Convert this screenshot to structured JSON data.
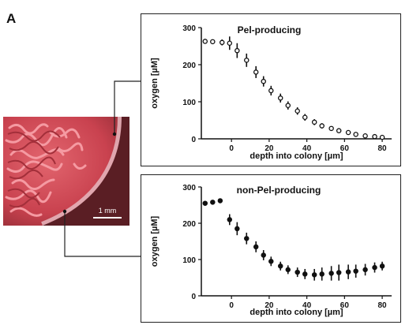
{
  "panel_label": "A",
  "scale_bar_label": "1 mm",
  "chart_data": [
    {
      "type": "scatter",
      "title": "Pel-producing",
      "xlabel": "depth into colony [µm]",
      "ylabel": "oxygen [µM]",
      "xlim": [
        -16,
        85
      ],
      "ylim": [
        0,
        300
      ],
      "xticks": [
        "0",
        "20",
        "40",
        "60",
        "80"
      ],
      "yticks": [
        "0",
        "100",
        "200",
        "300"
      ],
      "marker": "open-circle",
      "x": [
        -14,
        -10,
        -5,
        -1,
        3,
        8,
        13,
        17,
        21,
        26,
        30,
        35,
        39,
        44,
        48,
        53,
        57,
        62,
        66,
        71,
        76,
        80
      ],
      "y": [
        263,
        262,
        260,
        258,
        238,
        212,
        180,
        155,
        130,
        110,
        90,
        75,
        58,
        45,
        35,
        28,
        22,
        17,
        12,
        8,
        6,
        4
      ],
      "err": [
        0,
        0,
        8,
        18,
        20,
        18,
        16,
        14,
        13,
        12,
        11,
        10,
        9,
        8,
        7,
        6,
        5,
        4,
        4,
        3,
        3,
        2
      ]
    },
    {
      "type": "scatter",
      "title": "non-Pel-producing",
      "xlabel": "depth into colony [µm]",
      "ylabel": "oxygen [µM]",
      "xlim": [
        -16,
        85
      ],
      "ylim": [
        0,
        300
      ],
      "xticks": [
        "0",
        "20",
        "40",
        "60",
        "80"
      ],
      "yticks": [
        "0",
        "100",
        "200",
        "300"
      ],
      "marker": "filled-circle",
      "x": [
        -14,
        -10,
        -6,
        -1,
        3,
        8,
        13,
        17,
        21,
        26,
        30,
        35,
        39,
        44,
        48,
        53,
        57,
        62,
        66,
        71,
        76,
        80
      ],
      "y": [
        255,
        258,
        262,
        210,
        185,
        158,
        135,
        112,
        95,
        82,
        72,
        65,
        60,
        58,
        60,
        62,
        64,
        66,
        68,
        72,
        78,
        82
      ],
      "err": [
        0,
        0,
        0,
        15,
        18,
        16,
        15,
        14,
        13,
        12,
        12,
        13,
        14,
        16,
        18,
        20,
        22,
        20,
        18,
        16,
        14,
        12
      ]
    }
  ]
}
